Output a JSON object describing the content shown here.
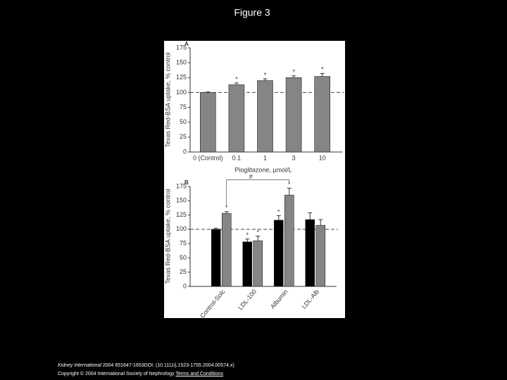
{
  "page_title": "Figure 3",
  "chart_data": [
    {
      "type": "bar",
      "panel": "A",
      "ylabel": "Texas Red-BSA uptake, % control",
      "xlabel": "Pioglitazone, µmol/L",
      "categories": [
        "0 (Control)",
        "0.1",
        "1",
        "3",
        "10"
      ],
      "values": [
        100,
        113,
        120,
        125,
        127
      ],
      "errors": [
        1,
        3,
        3,
        3,
        5
      ],
      "marks": [
        null,
        "*",
        "*",
        "*",
        "*"
      ],
      "color": "#858585",
      "ylim": [
        0,
        175
      ],
      "yticks": [
        0,
        25,
        50,
        75,
        100,
        125,
        150,
        175
      ],
      "reference_line": 100
    },
    {
      "type": "grouped-bar",
      "panel": "B",
      "ylabel": "Texas Red-BSA uptake, % control",
      "categories": [
        "Control-Solc",
        "LDL-100",
        "Albumin",
        "LDL-Alb"
      ],
      "series": [
        {
          "color": "#000000",
          "values": [
            100,
            78,
            116,
            117
          ],
          "errors": [
            2,
            5,
            8,
            12
          ],
          "marks": [
            null,
            "*",
            "*",
            null
          ]
        },
        {
          "color": "#858585",
          "values": [
            128,
            80,
            160,
            107
          ],
          "errors": [
            3,
            8,
            12,
            10
          ],
          "marks": [
            "*",
            "*",
            "*",
            null
          ]
        }
      ],
      "bracket_label": "#",
      "ylim": [
        0,
        175
      ],
      "yticks": [
        0,
        25,
        50,
        75,
        100,
        125,
        150,
        175
      ],
      "reference_line": 100
    }
  ],
  "footer": {
    "journal": "Kidney International",
    "citation": "2004 651647-1653DOI: (10.1111/j.1523-1755.2004.00574.x)",
    "copyright": "Copyright © 2004 International Society of Nephrology",
    "link": "Terms and Conditions"
  }
}
